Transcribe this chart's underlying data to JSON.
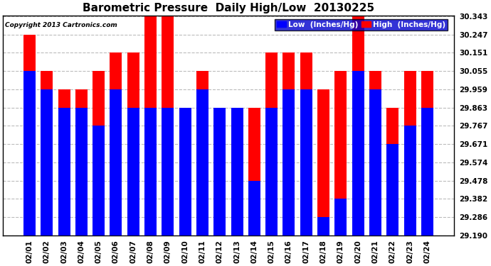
{
  "title": "Barometric Pressure  Daily High/Low  20130225",
  "copyright": "Copyright 2013 Cartronics.com",
  "dates": [
    "02/01",
    "02/02",
    "02/03",
    "02/04",
    "02/05",
    "02/06",
    "02/07",
    "02/08",
    "02/09",
    "02/10",
    "02/11",
    "02/12",
    "02/13",
    "02/14",
    "02/15",
    "02/16",
    "02/17",
    "02/18",
    "02/19",
    "02/20",
    "02/21",
    "02/22",
    "02/23",
    "02/24"
  ],
  "low": [
    30.055,
    29.959,
    29.863,
    29.863,
    29.767,
    29.959,
    29.863,
    29.863,
    29.863,
    29.863,
    29.959,
    29.863,
    29.863,
    29.478,
    29.863,
    29.959,
    29.959,
    29.286,
    29.382,
    30.055,
    29.959,
    29.671,
    29.767,
    29.863
  ],
  "high": [
    30.247,
    30.055,
    29.959,
    29.959,
    30.055,
    30.151,
    30.151,
    30.343,
    30.343,
    29.863,
    30.055,
    29.863,
    29.863,
    29.863,
    30.151,
    30.151,
    30.151,
    29.959,
    30.055,
    30.343,
    30.055,
    29.863,
    30.055,
    30.055
  ],
  "ymin": 29.19,
  "ymax": 30.343,
  "yticks": [
    29.19,
    29.286,
    29.382,
    29.478,
    29.574,
    29.671,
    29.767,
    29.863,
    29.959,
    30.055,
    30.151,
    30.247,
    30.343
  ],
  "bar_width": 0.7,
  "low_color": "#0000FF",
  "high_color": "#FF0000",
  "bg_color": "#FFFFFF",
  "grid_color": "#BBBBBB",
  "title_fontsize": 11,
  "tick_fontsize": 7.5,
  "legend_fontsize": 7.5
}
